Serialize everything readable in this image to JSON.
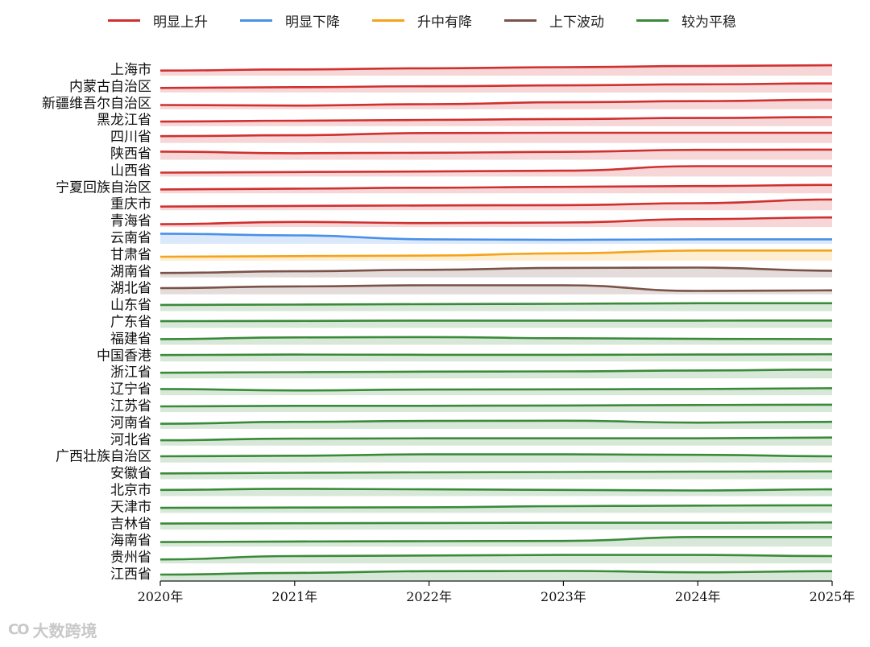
{
  "legend": [
    {
      "label": "明显上升",
      "color": "#d03030"
    },
    {
      "label": "明显下降",
      "color": "#4a8fe8"
    },
    {
      "label": "升中有降",
      "color": "#f5a31a"
    },
    {
      "label": "上下波动",
      "color": "#7a5248"
    },
    {
      "label": "较为平稳",
      "color": "#3a8a3a"
    }
  ],
  "watermark": {
    "logo": "CO",
    "text": "大数跨境"
  },
  "chart_data": {
    "type": "ridgeline",
    "x": [
      "2020年",
      "2021年",
      "2022年",
      "2023年",
      "2024年",
      "2025年"
    ],
    "xlim": [
      2020,
      2025
    ],
    "series": [
      {
        "name": "上海市",
        "group": "明显上升",
        "values": [
          0.45,
          0.55,
          0.65,
          0.75,
          0.85,
          0.92
        ]
      },
      {
        "name": "内蒙古自治区",
        "group": "明显上升",
        "values": [
          0.4,
          0.47,
          0.55,
          0.63,
          0.72,
          0.8
        ]
      },
      {
        "name": "新疆维吾尔自治区",
        "group": "明显上升",
        "values": [
          0.38,
          0.33,
          0.45,
          0.62,
          0.72,
          0.85
        ]
      },
      {
        "name": "黑龙江省",
        "group": "明显上升",
        "values": [
          0.4,
          0.48,
          0.55,
          0.63,
          0.72,
          0.8
        ]
      },
      {
        "name": "四川省",
        "group": "明显上升",
        "values": [
          0.6,
          0.68,
          0.88,
          0.9,
          0.9,
          0.9
        ]
      },
      {
        "name": "陕西省",
        "group": "明显上升",
        "values": [
          0.72,
          0.58,
          0.62,
          0.7,
          0.88,
          0.9
        ]
      },
      {
        "name": "山西省",
        "group": "明显上升",
        "values": [
          0.35,
          0.4,
          0.45,
          0.52,
          0.92,
          0.92
        ]
      },
      {
        "name": "宁夏回族自治区",
        "group": "明显上升",
        "values": [
          0.35,
          0.42,
          0.5,
          0.58,
          0.65,
          0.75
        ]
      },
      {
        "name": "重庆市",
        "group": "明显上升",
        "values": [
          0.32,
          0.38,
          0.42,
          0.45,
          0.62,
          0.95
        ]
      },
      {
        "name": "青海省",
        "group": "明显上升",
        "values": [
          0.25,
          0.45,
          0.35,
          0.4,
          0.7,
          0.85
        ]
      },
      {
        "name": "云南省",
        "group": "明显下降",
        "values": [
          0.9,
          0.75,
          0.4,
          0.35,
          0.4,
          0.4
        ]
      },
      {
        "name": "甘肃省",
        "group": "升中有降",
        "values": [
          0.35,
          0.4,
          0.45,
          0.65,
          0.9,
          0.9
        ]
      },
      {
        "name": "湖南省",
        "group": "上下波动",
        "values": [
          0.4,
          0.55,
          0.68,
          0.85,
          0.88,
          0.6
        ]
      },
      {
        "name": "湖北省",
        "group": "上下波动",
        "values": [
          0.55,
          0.7,
          0.8,
          0.8,
          0.3,
          0.35
        ]
      },
      {
        "name": "山东省",
        "group": "较为平稳",
        "values": [
          0.55,
          0.58,
          0.62,
          0.65,
          0.7,
          0.7
        ]
      },
      {
        "name": "广东省",
        "group": "较为平稳",
        "values": [
          0.6,
          0.62,
          0.65,
          0.65,
          0.65,
          0.66
        ]
      },
      {
        "name": "福建省",
        "group": "较为平稳",
        "values": [
          0.5,
          0.65,
          0.68,
          0.58,
          0.52,
          0.5
        ]
      },
      {
        "name": "中国香港",
        "group": "较为平稳",
        "values": [
          0.58,
          0.62,
          0.6,
          0.6,
          0.62,
          0.65
        ]
      },
      {
        "name": "浙江省",
        "group": "较为平稳",
        "values": [
          0.5,
          0.55,
          0.6,
          0.62,
          0.7,
          0.78
        ]
      },
      {
        "name": "辽宁省",
        "group": "较为平稳",
        "values": [
          0.55,
          0.42,
          0.5,
          0.52,
          0.55,
          0.62
        ]
      },
      {
        "name": "江苏省",
        "group": "较为平稳",
        "values": [
          0.5,
          0.55,
          0.55,
          0.58,
          0.62,
          0.65
        ]
      },
      {
        "name": "河南省",
        "group": "较为平稳",
        "values": [
          0.45,
          0.62,
          0.7,
          0.72,
          0.55,
          0.62
        ]
      },
      {
        "name": "河北省",
        "group": "较为平稳",
        "values": [
          0.48,
          0.62,
          0.65,
          0.65,
          0.65,
          0.72
        ]
      },
      {
        "name": "广西壮族自治区",
        "group": "较为平稳",
        "values": [
          0.55,
          0.6,
          0.72,
          0.72,
          0.68,
          0.55
        ]
      },
      {
        "name": "安徽省",
        "group": "较为平稳",
        "values": [
          0.52,
          0.58,
          0.62,
          0.65,
          0.68,
          0.7
        ]
      },
      {
        "name": "北京市",
        "group": "较为平稳",
        "values": [
          0.55,
          0.65,
          0.6,
          0.55,
          0.5,
          0.6
        ]
      },
      {
        "name": "天津市",
        "group": "较为平稳",
        "values": [
          0.45,
          0.48,
          0.5,
          0.6,
          0.65,
          0.68
        ]
      },
      {
        "name": "吉林省",
        "group": "较为平稳",
        "values": [
          0.55,
          0.58,
          0.6,
          0.62,
          0.62,
          0.65
        ]
      },
      {
        "name": "海南省",
        "group": "较为平稳",
        "values": [
          0.4,
          0.45,
          0.48,
          0.5,
          0.85,
          0.85
        ]
      },
      {
        "name": "贵州省",
        "group": "较为平稳",
        "values": [
          0.35,
          0.65,
          0.7,
          0.75,
          0.75,
          0.65
        ]
      },
      {
        "name": "江西省",
        "group": "较为平稳",
        "values": [
          0.5,
          0.65,
          0.8,
          0.82,
          0.7,
          0.8
        ]
      }
    ]
  }
}
